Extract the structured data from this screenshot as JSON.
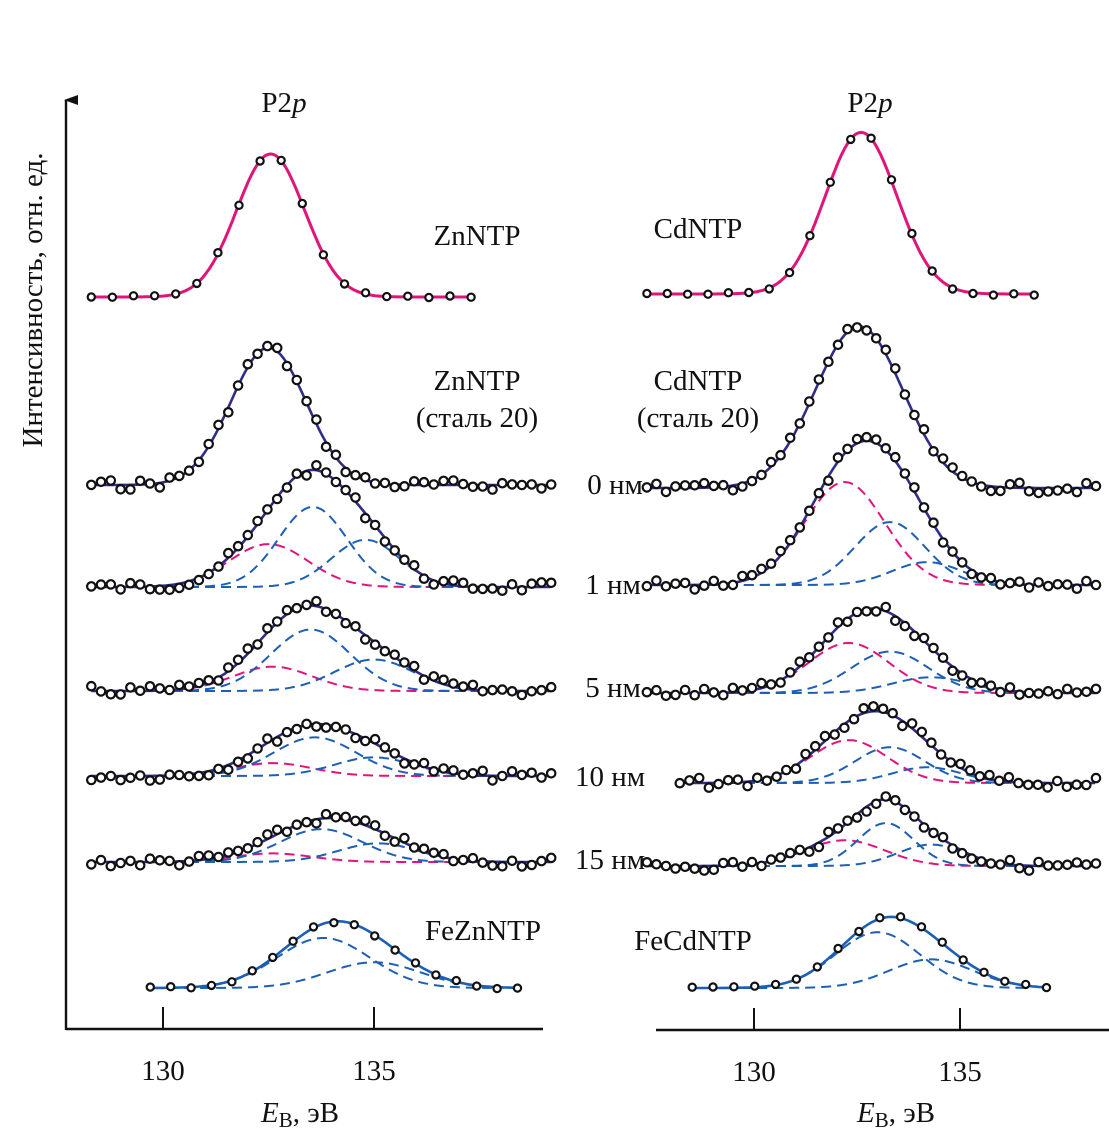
{
  "chart_data": {
    "type": "line",
    "ylabel": "Интенсивность, отн. ед.",
    "colors": {
      "substrate_component": "#e0157a",
      "other_components": "#1c5fb4",
      "envelope": "#2e2d8c",
      "reference_fit": "#e0157a",
      "fe_fit": "#1c5fb4",
      "axis": "#111111"
    },
    "panels": [
      {
        "id": "zn",
        "title": "P2p",
        "xlabel": "EB, эВ",
        "xlabel_main": "E",
        "xlabel_sub": "B",
        "xlabel_rest": ", эВ",
        "xticks": [
          130,
          135
        ],
        "xrange": [
          127.8,
          138.9
        ],
        "spectra": [
          {
            "label": [
              "ZnNTP"
            ],
            "thickness": "",
            "fit": "reference",
            "baseline": 1.0,
            "range": [
              128.3,
              137.3
            ],
            "points": 19,
            "components": [
              {
                "center": 132.55,
                "fwhm": 1.9,
                "height": 1.0,
                "color": "substrate_component",
                "shown": false
              }
            ]
          },
          {
            "label": [
              "ZnNTP",
              "(сталь 20)"
            ],
            "thickness": "0 нм",
            "fit": "envelope",
            "baseline": 0.0,
            "range": [
              128.3,
              139.2
            ],
            "points": 48,
            "components": [
              {
                "center": 132.5,
                "fwhm": 2.1,
                "height": 0.96,
                "color": "other_components",
                "shown": false
              }
            ]
          },
          {
            "label": [],
            "thickness": "1 нм",
            "fit": "envelope",
            "baseline": 0.0,
            "range": [
              128.3,
              139.2
            ],
            "points": 48,
            "components": [
              {
                "center": 132.5,
                "fwhm": 2.2,
                "height": 0.3,
                "color": "substrate_component",
                "shown": true
              },
              {
                "center": 133.55,
                "fwhm": 1.9,
                "height": 0.56,
                "color": "other_components",
                "shown": true
              },
              {
                "center": 134.8,
                "fwhm": 1.9,
                "height": 0.33,
                "color": "other_components",
                "shown": true
              }
            ]
          },
          {
            "label": [],
            "thickness": "5 нм",
            "fit": "envelope",
            "baseline": 0.0,
            "range": [
              128.3,
              139.2
            ],
            "points": 48,
            "components": [
              {
                "center": 132.6,
                "fwhm": 2.2,
                "height": 0.17,
                "color": "substrate_component",
                "shown": true
              },
              {
                "center": 133.5,
                "fwhm": 2.2,
                "height": 0.43,
                "color": "other_components",
                "shown": true
              },
              {
                "center": 135.0,
                "fwhm": 2.2,
                "height": 0.22,
                "color": "other_components",
                "shown": true
              }
            ]
          },
          {
            "label": [],
            "thickness": "10 нм",
            "fit": "envelope",
            "baseline": 0.0,
            "range": [
              128.3,
              139.2
            ],
            "points": 48,
            "components": [
              {
                "center": 132.6,
                "fwhm": 2.2,
                "height": 0.09,
                "color": "substrate_component",
                "shown": true
              },
              {
                "center": 133.6,
                "fwhm": 2.3,
                "height": 0.27,
                "color": "other_components",
                "shown": true
              },
              {
                "center": 135.0,
                "fwhm": 2.2,
                "height": 0.13,
                "color": "other_components",
                "shown": true
              }
            ]
          },
          {
            "label": [],
            "thickness": "15 нм",
            "fit": "envelope",
            "baseline": 0.0,
            "range": [
              128.3,
              139.2
            ],
            "points": 48,
            "components": [
              {
                "center": 132.6,
                "fwhm": 2.2,
                "height": 0.06,
                "color": "substrate_component",
                "shown": true
              },
              {
                "center": 133.75,
                "fwhm": 2.3,
                "height": 0.23,
                "color": "other_components",
                "shown": true
              },
              {
                "center": 135.1,
                "fwhm": 2.2,
                "height": 0.13,
                "color": "other_components",
                "shown": true
              }
            ]
          },
          {
            "label": [
              "FeZnNTP"
            ],
            "thickness": "",
            "fit": "fe",
            "baseline": 0.0,
            "range": [
              129.7,
              138.4
            ],
            "points": 19,
            "components": [
              {
                "center": 133.8,
                "fwhm": 2.6,
                "height": 0.35,
                "color": "other_components",
                "shown": true
              },
              {
                "center": 135.0,
                "fwhm": 2.6,
                "height": 0.18,
                "color": "other_components",
                "shown": true
              }
            ]
          }
        ]
      },
      {
        "id": "cd",
        "title": "P2p",
        "xlabel": "EB, эВ",
        "xlabel_main": "E",
        "xlabel_sub": "B",
        "xlabel_rest": ", эВ",
        "xticks": [
          130,
          135
        ],
        "xrange": [
          127.5,
          138.5
        ],
        "spectra": [
          {
            "label": [
              "CdNTP"
            ],
            "thickness": "",
            "fit": "reference",
            "baseline": 0.0,
            "range": [
              127.4,
              136.8
            ],
            "points": 20,
            "components": [
              {
                "center": 132.6,
                "fwhm": 2.05,
                "height": 1.13,
                "color": "substrate_component",
                "shown": false
              }
            ]
          },
          {
            "label": [
              "CdNTP",
              "(сталь 20)"
            ],
            "thickness": "",
            "fit": "envelope",
            "baseline": 0.0,
            "range": [
              127.4,
              138.3
            ],
            "points": 48,
            "components": [
              {
                "center": 132.55,
                "fwhm": 2.5,
                "height": 1.13,
                "color": "other_components",
                "shown": false
              }
            ]
          },
          {
            "label": [],
            "thickness": "",
            "fit": "envelope",
            "baseline": 0.0,
            "range": [
              127.4,
              138.3
            ],
            "points": 48,
            "components": [
              {
                "center": 132.2,
                "fwhm": 2.3,
                "height": 0.72,
                "color": "substrate_component",
                "shown": true
              },
              {
                "center": 133.3,
                "fwhm": 2.0,
                "height": 0.44,
                "color": "other_components",
                "shown": true
              },
              {
                "center": 134.2,
                "fwhm": 2.0,
                "height": 0.16,
                "color": "other_components",
                "shown": true
              }
            ]
          },
          {
            "label": [],
            "thickness": "",
            "fit": "envelope",
            "baseline": 0.0,
            "range": [
              127.4,
              138.3
            ],
            "points": 48,
            "components": [
              {
                "center": 132.3,
                "fwhm": 2.3,
                "height": 0.35,
                "color": "substrate_component",
                "shown": true
              },
              {
                "center": 133.3,
                "fwhm": 2.2,
                "height": 0.29,
                "color": "other_components",
                "shown": true
              },
              {
                "center": 134.3,
                "fwhm": 2.2,
                "height": 0.11,
                "color": "other_components",
                "shown": true
              }
            ]
          },
          {
            "label": [],
            "thickness": "",
            "fit": "envelope",
            "baseline": 0.0,
            "range": [
              128.2,
              138.3
            ],
            "points": 44,
            "components": [
              {
                "center": 132.3,
                "fwhm": 2.2,
                "height": 0.3,
                "color": "substrate_component",
                "shown": true
              },
              {
                "center": 133.3,
                "fwhm": 2.0,
                "height": 0.25,
                "color": "other_components",
                "shown": true
              },
              {
                "center": 134.2,
                "fwhm": 2.0,
                "height": 0.11,
                "color": "other_components",
                "shown": true
              }
            ]
          },
          {
            "label": [],
            "thickness": "",
            "fit": "envelope",
            "baseline": 0.0,
            "range": [
              127.4,
              138.3
            ],
            "points": 48,
            "components": [
              {
                "center": 132.2,
                "fwhm": 2.3,
                "height": 0.18,
                "color": "substrate_component",
                "shown": true
              },
              {
                "center": 133.2,
                "fwhm": 1.6,
                "height": 0.3,
                "color": "other_components",
                "shown": true
              },
              {
                "center": 134.3,
                "fwhm": 1.9,
                "height": 0.15,
                "color": "other_components",
                "shown": true
              }
            ]
          },
          {
            "label": [
              "FeCdNTP"
            ],
            "thickness": "",
            "fit": "fe",
            "baseline": 0.0,
            "range": [
              128.5,
              137.1
            ],
            "points": 18,
            "components": [
              {
                "center": 133.0,
                "fwhm": 2.4,
                "height": 0.39,
                "color": "other_components",
                "shown": true
              },
              {
                "center": 134.3,
                "fwhm": 2.4,
                "height": 0.2,
                "color": "other_components",
                "shown": true
              }
            ]
          }
        ]
      }
    ]
  }
}
